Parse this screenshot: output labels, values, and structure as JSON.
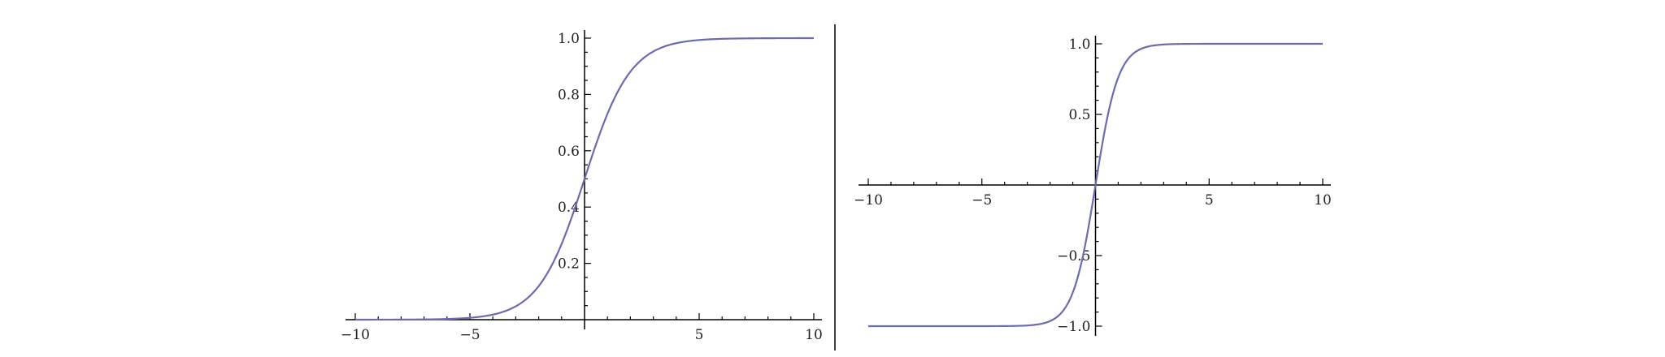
{
  "colors": {
    "curve": "#6b6bb0",
    "axis": "#000000",
    "separator": "#000000"
  },
  "chart_data": [
    {
      "type": "line",
      "function": "sigmoid",
      "xlim": [
        -10,
        10
      ],
      "ylim": [
        0,
        1
      ],
      "grid": false,
      "title": "",
      "xlabel": "",
      "ylabel": "",
      "x_ticks": [
        -10,
        -5,
        5,
        10
      ],
      "x_tick_labels": [
        "−10",
        "−5",
        "5",
        "10"
      ],
      "y_ticks": [
        0.2,
        0.4,
        0.6,
        0.8,
        1.0
      ],
      "y_tick_labels": [
        "0.2",
        "0.4",
        "0.6",
        "0.8",
        "1.0"
      ],
      "series": [
        {
          "x": [
            -10,
            -8,
            -6,
            -5,
            -4,
            -3,
            -2,
            -1.5,
            -1,
            -0.5,
            0,
            0.5,
            1,
            1.5,
            2,
            3,
            4,
            5,
            6,
            8,
            10
          ],
          "y": [
            0.0,
            0.0003,
            0.0025,
            0.0067,
            0.018,
            0.0474,
            0.1192,
            0.1824,
            0.2689,
            0.3775,
            0.5,
            0.6225,
            0.7311,
            0.8176,
            0.8808,
            0.9526,
            0.982,
            0.9933,
            0.9975,
            0.9997,
            1.0
          ]
        }
      ]
    },
    {
      "type": "line",
      "function": "tanh",
      "xlim": [
        -10,
        10
      ],
      "ylim": [
        -1,
        1
      ],
      "grid": false,
      "title": "",
      "xlabel": "",
      "ylabel": "",
      "x_ticks": [
        -10,
        -5,
        5,
        10
      ],
      "x_tick_labels": [
        "−10",
        "−5",
        "5",
        "10"
      ],
      "y_ticks": [
        -1.0,
        -0.5,
        0.5,
        1.0
      ],
      "y_tick_labels": [
        "−1.0",
        "−0.5",
        "0.5",
        "1.0"
      ],
      "series": [
        {
          "x": [
            -10,
            -6,
            -4,
            -3,
            -2,
            -1.5,
            -1,
            -0.5,
            0,
            0.5,
            1,
            1.5,
            2,
            3,
            4,
            6,
            10
          ],
          "y": [
            -1.0,
            -1.0,
            -0.9993,
            -0.9951,
            -0.964,
            -0.9051,
            -0.7616,
            -0.4621,
            0.0,
            0.4621,
            0.7616,
            0.9051,
            0.964,
            0.9951,
            0.9993,
            1.0,
            1.0
          ]
        }
      ]
    }
  ]
}
